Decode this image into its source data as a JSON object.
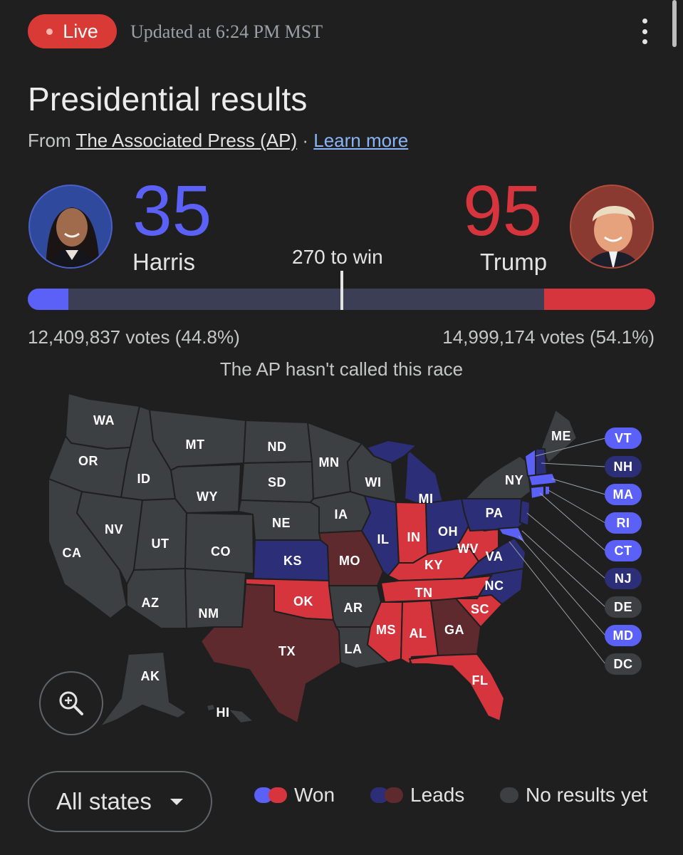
{
  "header": {
    "live_label": "Live",
    "updated": "Updated at 6:24 PM MST"
  },
  "title": "Presidential results",
  "source": {
    "prefix": "From",
    "name": "The Associated Press (AP)",
    "separator": "·",
    "learn_more": "Learn more"
  },
  "candidates": {
    "harris": {
      "name": "Harris",
      "electoral_votes": "35",
      "votes": "12,409,837 votes (44.8%)",
      "color": "#5b61f6"
    },
    "trump": {
      "name": "Trump",
      "electoral_votes": "95",
      "votes": "14,999,174 votes (54.1%)",
      "color": "#d7353e"
    }
  },
  "progress": {
    "to_win_label": "270 to win",
    "total_electoral_votes": 538,
    "harris_electoral_votes": 35,
    "trump_electoral_votes": 95,
    "threshold": 270
  },
  "status": "The AP hasn't called this race",
  "colors": {
    "dem_won": "#5b61f6",
    "rep_won": "#d7353e",
    "dem_leads": "#2c2f78",
    "rep_leads": "#5e2a2d",
    "no_results": "#3c4043"
  },
  "map": {
    "states": {
      "WA": "no_results",
      "OR": "no_results",
      "CA": "no_results",
      "ID": "no_results",
      "NV": "no_results",
      "MT": "no_results",
      "WY": "no_results",
      "UT": "no_results",
      "AZ": "no_results",
      "CO": "no_results",
      "NM": "no_results",
      "ND": "no_results",
      "SD": "no_results",
      "NE": "no_results",
      "KS": "dem_leads",
      "OK": "rep_won",
      "TX": "rep_leads",
      "MN": "no_results",
      "IA": "no_results",
      "MO": "rep_leads",
      "AR": "no_results",
      "LA": "no_results",
      "WI": "no_results",
      "IL": "dem_leads",
      "MI": "dem_leads",
      "IN": "rep_won",
      "OH": "dem_leads",
      "KY": "rep_won",
      "TN": "rep_won",
      "MS": "rep_won",
      "AL": "rep_won",
      "GA": "rep_leads",
      "FL": "rep_won",
      "SC": "rep_won",
      "NC": "dem_leads",
      "VA": "dem_leads",
      "WV": "rep_won",
      "PA": "dem_leads",
      "NY": "no_results",
      "ME": "no_results",
      "AK": "no_results",
      "HI": "no_results"
    },
    "callouts": [
      {
        "code": "VT",
        "status": "dem_won"
      },
      {
        "code": "NH",
        "status": "dem_leads"
      },
      {
        "code": "MA",
        "status": "dem_won"
      },
      {
        "code": "RI",
        "status": "dem_won"
      },
      {
        "code": "CT",
        "status": "dem_won"
      },
      {
        "code": "NJ",
        "status": "dem_leads"
      },
      {
        "code": "DE",
        "status": "no_results"
      },
      {
        "code": "MD",
        "status": "dem_won"
      },
      {
        "code": "DC",
        "status": "no_results"
      }
    ]
  },
  "controls": {
    "zoom_icon": "zoom-in-icon",
    "filter_label": "All states"
  },
  "legend": {
    "won": "Won",
    "leads": "Leads",
    "no_results": "No results yet"
  }
}
